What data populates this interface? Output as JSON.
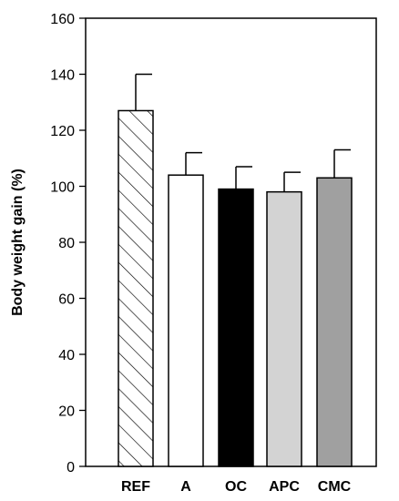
{
  "chart_data": {
    "type": "bar",
    "title": "",
    "xlabel": "",
    "ylabel": "Body weight gain (%)",
    "ylim": [
      0,
      160
    ],
    "yticks": [
      0,
      20,
      40,
      60,
      80,
      100,
      120,
      140,
      160
    ],
    "grid": false,
    "legend": "none",
    "categories": [
      "REF",
      "A",
      "OC",
      "APC",
      "CMC"
    ],
    "values": [
      127,
      104,
      99,
      98,
      103
    ],
    "errors": [
      13,
      8,
      8,
      7,
      10
    ],
    "fills": [
      "hatched",
      "#ffffff",
      "#000000",
      "#d3d3d3",
      "#a0a0a0"
    ]
  }
}
